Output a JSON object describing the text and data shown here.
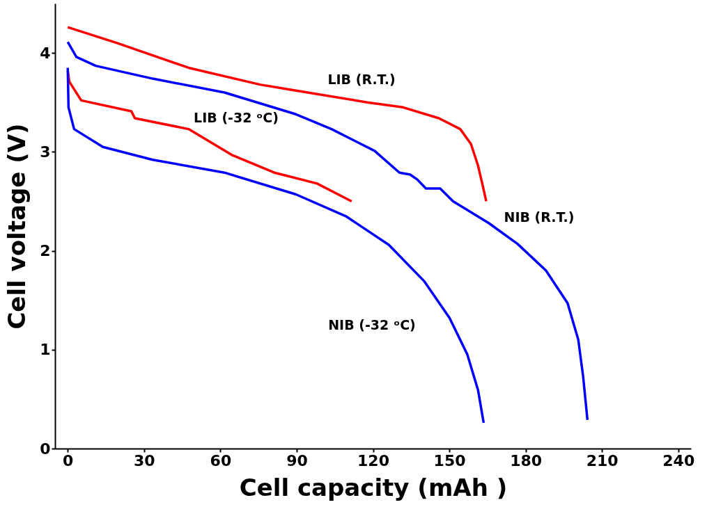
{
  "chart_data": {
    "type": "line",
    "xlabel": "Cell capacity (mAh )",
    "ylabel": "Cell voltage (V)",
    "xlim": [
      -5,
      245
    ],
    "ylim": [
      0,
      4.5
    ],
    "xticks": [
      0,
      30,
      60,
      90,
      120,
      150,
      180,
      210,
      240
    ],
    "yticks": [
      0,
      1,
      2,
      3,
      4
    ],
    "grid": false,
    "legend": false,
    "marker": "none",
    "line_style": "solid",
    "series": [
      {
        "color": "#ff0000",
        "x": [
          0,
          19.4,
          47.5,
          75.6,
          89.7,
          117.8,
          131.8,
          145.9,
          154.3,
          158.5,
          161.3,
          163.3,
          164.5
        ],
        "values": [
          4.26,
          4.1,
          3.85,
          3.68,
          3.62,
          3.5,
          3.45,
          3.34,
          3.23,
          3.08,
          2.86,
          2.64,
          2.5
        ]
      },
      {
        "color": "#0000ff",
        "x": [
          0,
          3.4,
          11,
          33.4,
          61.6,
          89.7,
          103.7,
          120.6,
          130.4,
          134.6,
          137.4,
          140.8,
          146.4,
          151.5,
          165.5,
          176.8,
          188,
          196.5,
          200.7,
          202.6,
          204.3
        ],
        "values": [
          4.11,
          3.96,
          3.87,
          3.74,
          3.6,
          3.38,
          3.23,
          3.01,
          2.79,
          2.77,
          2.72,
          2.63,
          2.63,
          2.5,
          2.28,
          2.07,
          1.8,
          1.47,
          1.1,
          0.73,
          0.29
        ]
      },
      {
        "color": "#ff0000",
        "x": [
          0,
          0.6,
          5.3,
          25,
          26.4,
          47.5,
          64.4,
          81.2,
          98,
          111.6
        ],
        "values": [
          3.82,
          3.71,
          3.52,
          3.41,
          3.34,
          3.23,
          2.97,
          2.79,
          2.68,
          2.5
        ]
      },
      {
        "color": "#0000ff",
        "x": [
          0,
          0.3,
          2.5,
          13.8,
          33.4,
          61.6,
          89.7,
          109.3,
          126.2,
          140.2,
          150.1,
          157.1,
          161.3,
          163.5
        ],
        "values": [
          3.85,
          3.45,
          3.23,
          3.05,
          2.92,
          2.79,
          2.57,
          2.35,
          2.06,
          1.69,
          1.32,
          0.95,
          0.59,
          0.26
        ]
      }
    ],
    "annotations": [
      "LIB (R.T.)",
      "LIB (-32 ᵒC)",
      "NIB (R.T.)",
      "NIB (-32 ᵒC)"
    ]
  }
}
